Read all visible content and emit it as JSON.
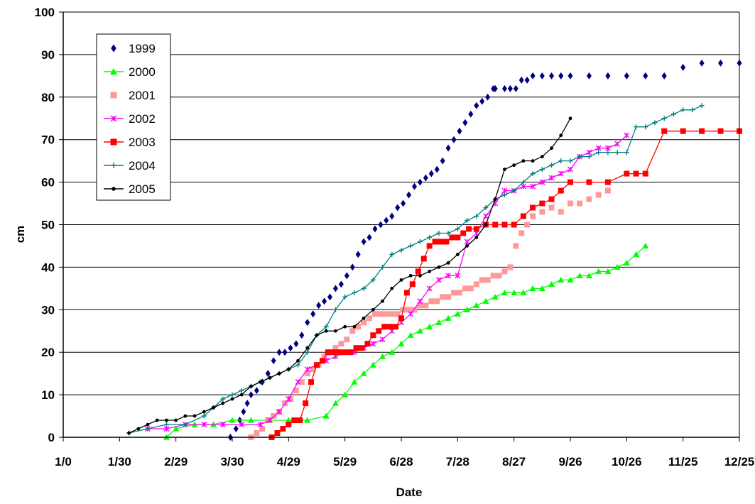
{
  "chart_data": {
    "type": "line",
    "title": "",
    "xlabel": "Date",
    "ylabel": "cm",
    "x_unit": "day of year",
    "xlim": [
      0,
      360
    ],
    "ylim": [
      0,
      100
    ],
    "x_ticks": [
      {
        "value": 0,
        "label": "1/0"
      },
      {
        "value": 30,
        "label": "1/30"
      },
      {
        "value": 60,
        "label": "2/29"
      },
      {
        "value": 90,
        "label": "3/30"
      },
      {
        "value": 120,
        "label": "4/29"
      },
      {
        "value": 150,
        "label": "5/29"
      },
      {
        "value": 180,
        "label": "6/28"
      },
      {
        "value": 210,
        "label": "7/28"
      },
      {
        "value": 240,
        "label": "8/27"
      },
      {
        "value": 270,
        "label": "9/26"
      },
      {
        "value": 300,
        "label": "10/26"
      },
      {
        "value": 330,
        "label": "11/25"
      },
      {
        "value": 360,
        "label": "12/25"
      }
    ],
    "y_ticks": [
      "0",
      "10",
      "20",
      "30",
      "40",
      "50",
      "60",
      "70",
      "80",
      "90",
      "100"
    ],
    "grid": "horizontal",
    "legend_position": "top-left",
    "series": [
      {
        "name": "1999",
        "color": "#000080",
        "marker": "diamond",
        "line": false,
        "x": [
          89,
          92,
          94,
          96,
          98,
          100,
          103,
          106,
          109,
          112,
          115,
          118,
          121,
          124,
          127,
          130,
          133,
          136,
          139,
          142,
          145,
          148,
          151,
          154,
          157,
          160,
          163,
          166,
          169,
          172,
          175,
          178,
          181,
          184,
          187,
          190,
          193,
          196,
          199,
          202,
          205,
          208,
          211,
          214,
          217,
          220,
          223,
          226,
          229,
          230,
          235,
          238,
          241,
          244,
          247,
          250,
          255,
          260,
          265,
          270,
          280,
          290,
          300,
          310,
          320,
          330,
          340,
          350,
          360
        ],
        "y": [
          0,
          2,
          4,
          6,
          8,
          10,
          11,
          13,
          15,
          18,
          20,
          20,
          21,
          22,
          24,
          27,
          29,
          31,
          32,
          33,
          35,
          36,
          38,
          40,
          43,
          46,
          47,
          49,
          50,
          51,
          52,
          54,
          55,
          57,
          59,
          60,
          61,
          62,
          63,
          65,
          68,
          70,
          72,
          74,
          76,
          78,
          79,
          80,
          82,
          82,
          82,
          82,
          82,
          84,
          84,
          85,
          85,
          85,
          85,
          85,
          85,
          85,
          85,
          85,
          85,
          87,
          88,
          88,
          88
        ]
      },
      {
        "name": "2000",
        "color": "#00ff00",
        "marker": "triangle",
        "line": true,
        "x": [
          55,
          60,
          70,
          80,
          90,
          100,
          110,
          120,
          130,
          140,
          145,
          150,
          155,
          160,
          165,
          170,
          175,
          180,
          185,
          190,
          195,
          200,
          205,
          210,
          215,
          220,
          225,
          230,
          235,
          240,
          245,
          250,
          255,
          260,
          265,
          270,
          275,
          280,
          285,
          290,
          295,
          300,
          305,
          310
        ],
        "y": [
          0,
          2,
          3,
          3,
          4,
          4,
          4,
          4,
          4,
          5,
          8,
          10,
          13,
          15,
          17,
          19,
          20,
          22,
          24,
          25,
          26,
          27,
          28,
          29,
          30,
          31,
          32,
          33,
          34,
          34,
          34,
          35,
          35,
          36,
          37,
          37,
          38,
          38,
          39,
          39,
          40,
          41,
          43,
          45
        ]
      },
      {
        "name": "2001",
        "color": "#ff9999",
        "marker": "square",
        "line": false,
        "x": [
          100,
          103,
          106,
          109,
          112,
          115,
          118,
          121,
          124,
          127,
          130,
          133,
          136,
          139,
          142,
          145,
          148,
          151,
          154,
          157,
          160,
          163,
          166,
          169,
          172,
          175,
          178,
          181,
          184,
          187,
          190,
          193,
          196,
          199,
          202,
          205,
          208,
          211,
          214,
          217,
          220,
          223,
          226,
          229,
          232,
          235,
          238,
          241,
          244,
          247,
          250,
          255,
          260,
          265,
          270,
          275,
          280,
          285,
          290
        ],
        "y": [
          0,
          1,
          2,
          4,
          5,
          6,
          8,
          9,
          11,
          13,
          15,
          16,
          17,
          19,
          20,
          21,
          22,
          23,
          25,
          26,
          27,
          28,
          29,
          29,
          29,
          29,
          29,
          30,
          30,
          30,
          31,
          31,
          32,
          32,
          33,
          33,
          34,
          34,
          35,
          35,
          36,
          37,
          37,
          38,
          38,
          39,
          40,
          45,
          48,
          50,
          52,
          53,
          54,
          53,
          55,
          55,
          56,
          57,
          58
        ]
      },
      {
        "name": "2002",
        "color": "#ff00ff",
        "marker": "star",
        "line": true,
        "x": [
          45,
          55,
          65,
          75,
          85,
          95,
          105,
          110,
          115,
          120,
          125,
          130,
          135,
          140,
          145,
          150,
          155,
          160,
          165,
          170,
          175,
          180,
          185,
          190,
          195,
          200,
          205,
          210,
          215,
          220,
          225,
          230,
          235,
          240,
          245,
          250,
          255,
          260,
          265,
          270,
          275,
          280,
          285,
          290,
          295,
          300
        ],
        "y": [
          2,
          2,
          3,
          3,
          3,
          3,
          3,
          4,
          6,
          9,
          13,
          16,
          17,
          18,
          19,
          20,
          20,
          21,
          22,
          23,
          25,
          27,
          29,
          32,
          35,
          37,
          38,
          38,
          46,
          48,
          52,
          55,
          58,
          58,
          59,
          59,
          60,
          61,
          62,
          63,
          66,
          67,
          68,
          68,
          69,
          71
        ]
      },
      {
        "name": "2003",
        "color": "#ff0000",
        "marker": "square",
        "line": true,
        "x": [
          111,
          114,
          117,
          120,
          123,
          126,
          129,
          132,
          135,
          138,
          141,
          144,
          147,
          150,
          153,
          156,
          159,
          162,
          165,
          168,
          171,
          174,
          177,
          180,
          183,
          186,
          189,
          192,
          195,
          198,
          201,
          204,
          207,
          210,
          213,
          216,
          220,
          225,
          230,
          235,
          240,
          245,
          250,
          255,
          260,
          265,
          270,
          280,
          290,
          300,
          305,
          310,
          320,
          330,
          340,
          350,
          360
        ],
        "y": [
          0,
          1,
          2,
          3,
          4,
          4,
          8,
          13,
          17,
          18,
          20,
          20,
          20,
          20,
          20,
          21,
          21,
          22,
          24,
          25,
          26,
          26,
          26,
          28,
          34,
          36,
          39,
          42,
          45,
          46,
          46,
          46,
          47,
          47,
          48,
          49,
          49,
          50,
          50,
          50,
          50,
          52,
          54,
          55,
          56,
          58,
          60,
          60,
          60,
          62,
          62,
          62,
          72,
          72,
          72,
          72,
          72
        ]
      },
      {
        "name": "2004",
        "color": "#008080",
        "marker": "plus",
        "line": true,
        "x": [
          35,
          45,
          55,
          65,
          75,
          80,
          85,
          90,
          95,
          100,
          105,
          110,
          115,
          120,
          125,
          130,
          135,
          140,
          145,
          150,
          155,
          160,
          165,
          170,
          175,
          180,
          185,
          190,
          195,
          200,
          205,
          210,
          215,
          220,
          225,
          230,
          235,
          240,
          245,
          250,
          255,
          260,
          265,
          270,
          275,
          280,
          285,
          290,
          295,
          300,
          305,
          310,
          315,
          320,
          325,
          330,
          335,
          340
        ],
        "y": [
          1,
          2,
          3,
          3,
          5,
          7,
          9,
          10,
          11,
          12,
          13,
          14,
          15,
          16,
          17,
          20,
          24,
          26,
          30,
          33,
          34,
          35,
          37,
          40,
          43,
          44,
          45,
          46,
          47,
          48,
          48,
          49,
          51,
          52,
          54,
          56,
          57,
          58,
          60,
          62,
          63,
          64,
          65,
          65,
          66,
          66,
          67,
          67,
          67,
          67,
          73,
          73,
          74,
          75,
          76,
          77,
          77,
          78
        ]
      },
      {
        "name": "2005",
        "color": "#000000",
        "marker": "circle",
        "line": true,
        "x": [
          35,
          40,
          45,
          50,
          55,
          60,
          65,
          70,
          75,
          80,
          85,
          90,
          95,
          100,
          105,
          110,
          115,
          120,
          125,
          130,
          135,
          140,
          145,
          150,
          155,
          160,
          165,
          170,
          175,
          180,
          185,
          190,
          195,
          200,
          205,
          210,
          215,
          220,
          225,
          230,
          235,
          240,
          245,
          250,
          255,
          260,
          265,
          270
        ],
        "y": [
          1,
          2,
          3,
          4,
          4,
          4,
          5,
          5,
          6,
          7,
          8,
          9,
          10,
          12,
          13,
          14,
          15,
          16,
          18,
          21,
          24,
          25,
          25,
          26,
          26,
          28,
          30,
          32,
          35,
          37,
          38,
          38,
          39,
          40,
          41,
          43,
          45,
          47,
          50,
          56,
          63,
          64,
          65,
          65,
          66,
          68,
          71,
          75
        ]
      }
    ]
  }
}
